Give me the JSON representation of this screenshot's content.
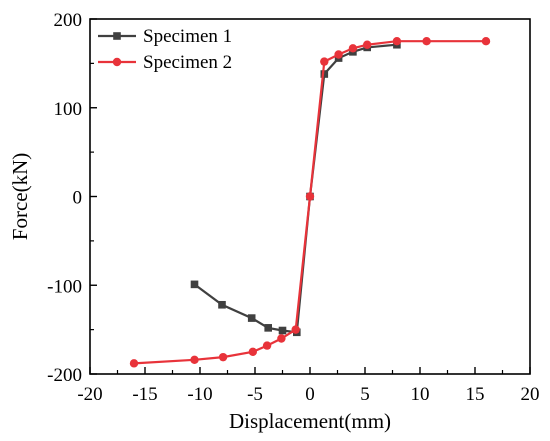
{
  "chart_data": {
    "type": "line",
    "title": "",
    "xlabel": "Displacement(mm)",
    "ylabel": "Force(kN)",
    "xlim": [
      -20,
      20
    ],
    "ylim": [
      -200,
      200
    ],
    "xticks": [
      -20,
      -15,
      -10,
      -5,
      0,
      5,
      10,
      15,
      20
    ],
    "yticks": [
      -200,
      -100,
      0,
      100,
      200
    ],
    "grid": false,
    "legend_position": "top-left",
    "series": [
      {
        "name": "Specimen 1",
        "color": "#404040",
        "marker": "square",
        "points": [
          [
            -10.5,
            -99
          ],
          [
            -8.0,
            -122
          ],
          [
            -5.3,
            -137
          ],
          [
            -3.8,
            -148
          ],
          [
            -2.5,
            -151
          ],
          [
            -1.2,
            -153
          ],
          [
            0.0,
            0
          ],
          [
            1.3,
            138
          ],
          [
            2.6,
            156
          ],
          [
            3.9,
            163
          ],
          [
            5.2,
            168
          ],
          [
            7.9,
            171
          ]
        ]
      },
      {
        "name": "Specimen 2",
        "color": "#e8333a",
        "marker": "circle",
        "points": [
          [
            -16.0,
            -188
          ],
          [
            -10.5,
            -184
          ],
          [
            -7.9,
            -181
          ],
          [
            -5.2,
            -175
          ],
          [
            -3.9,
            -168
          ],
          [
            -2.6,
            -160
          ],
          [
            -1.3,
            -150
          ],
          [
            0.0,
            0
          ],
          [
            1.3,
            152
          ],
          [
            2.6,
            160
          ],
          [
            3.9,
            167
          ],
          [
            5.2,
            171
          ],
          [
            7.9,
            175
          ],
          [
            10.6,
            175
          ],
          [
            16.0,
            175
          ]
        ]
      }
    ]
  }
}
